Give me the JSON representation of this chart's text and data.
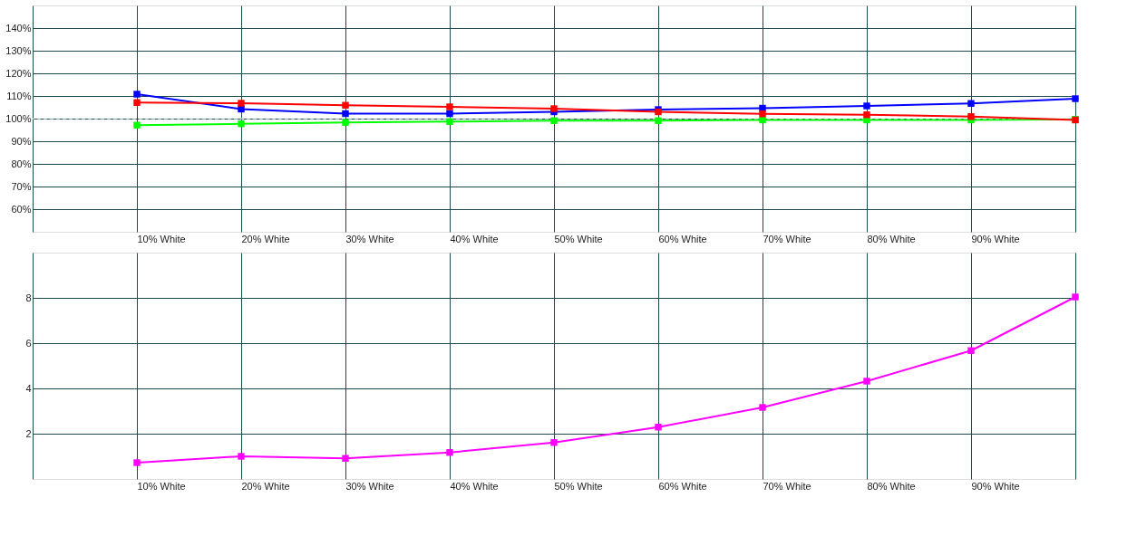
{
  "chart_data": [
    {
      "type": "line",
      "categories": [
        null,
        "10% White",
        "20% White",
        "30% White",
        "40% White",
        "50% White",
        "60% White",
        "70% White",
        "80% White",
        "90% White",
        null
      ],
      "series": [
        {
          "color": "#00ff00",
          "values": [
            null,
            97.1,
            97.7,
            98.3,
            98.7,
            99.1,
            99.1,
            99.4,
            99.4,
            99.4,
            99.7
          ]
        },
        {
          "color": "#0000ff",
          "values": [
            null,
            110.8,
            104.2,
            102.2,
            102.2,
            103.0,
            104.0,
            104.6,
            105.6,
            106.7,
            108.8
          ]
        },
        {
          "color": "#ff0000",
          "values": [
            null,
            107.1,
            106.8,
            105.9,
            105.2,
            104.4,
            103.0,
            102.1,
            101.7,
            100.9,
            99.4
          ]
        }
      ],
      "ylim": [
        50,
        150
      ],
      "yticks": [
        {
          "value": 60,
          "label": "60%"
        },
        {
          "value": 70,
          "label": "70%"
        },
        {
          "value": 80,
          "label": "80%"
        },
        {
          "value": 90,
          "label": "90%"
        },
        {
          "value": 100,
          "label": "100%"
        },
        {
          "value": 110,
          "label": "110%"
        },
        {
          "value": 120,
          "label": "120%"
        },
        {
          "value": 130,
          "label": "130%"
        },
        {
          "value": 140,
          "label": "140%"
        }
      ],
      "ref_lines": [
        {
          "axis": "y",
          "value": 100,
          "color": "#ffffff",
          "line_style": "dashed"
        }
      ],
      "grid": true,
      "marker": "square"
    },
    {
      "type": "line",
      "categories": [
        null,
        "10% White",
        "20% White",
        "30% White",
        "40% White",
        "50% White",
        "60% White",
        "70% White",
        "80% White",
        "90% White",
        null
      ],
      "series": [
        {
          "color": "#ff00ff",
          "values": [
            null,
            0.72,
            1.0,
            0.91,
            1.17,
            1.61,
            2.29,
            3.16,
            4.32,
            5.67,
            8.04
          ]
        }
      ],
      "ylim": [
        0,
        10
      ],
      "yticks": [
        2,
        4,
        6,
        8
      ],
      "grid": true,
      "marker": "square"
    }
  ]
}
